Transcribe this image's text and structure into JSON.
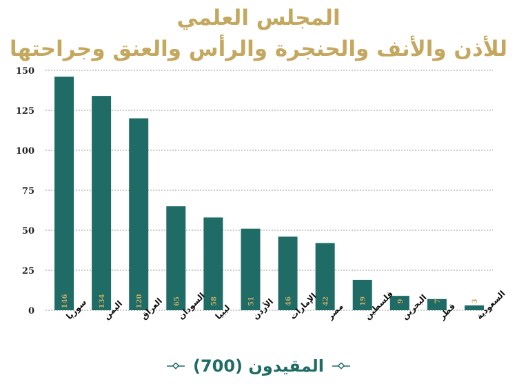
{
  "title_line1": "المجلس العلمي",
  "title_line2": "للأذن والأنف والحنجرة والرأس والعنق وجراحتها",
  "footer_text": "المقيدون (700)",
  "colors": {
    "bar": "#1f6b66",
    "title": "#c4a85f",
    "value_label": "#c4a85f"
  },
  "chart_data": {
    "type": "bar",
    "categories": [
      "سوريا",
      "اليمن",
      "العراق",
      "السودان",
      "ليبيا",
      "الأردن",
      "الإمارات",
      "مصر",
      "فلسطين",
      "البحرين",
      "قطر",
      "السعودية"
    ],
    "values": [
      146,
      134,
      120,
      65,
      58,
      51,
      46,
      42,
      19,
      9,
      7,
      3
    ],
    "yticks": [
      0,
      25,
      50,
      75,
      100,
      125,
      150
    ],
    "ylim": [
      0,
      150
    ],
    "grid": true,
    "legend": "none"
  }
}
